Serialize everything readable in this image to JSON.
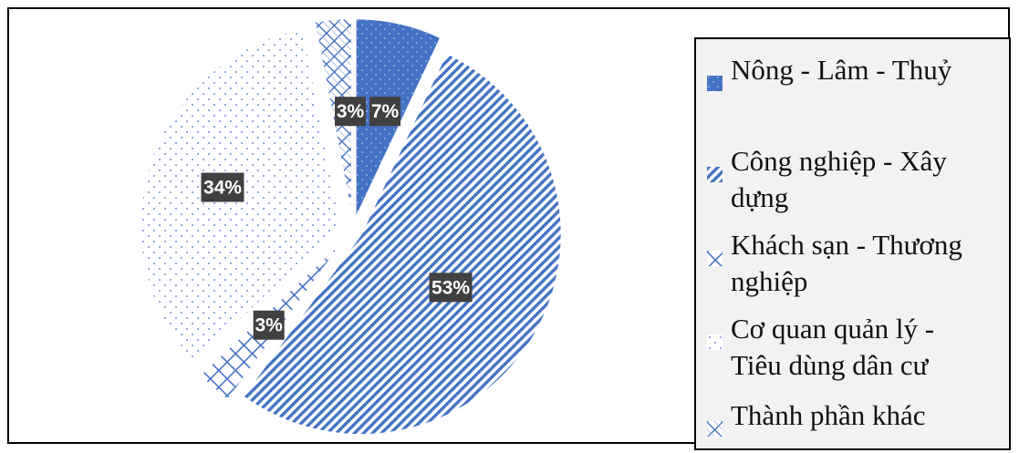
{
  "chart_data": {
    "type": "pie",
    "categories": [
      "Nông - Lâm - Thuỷ",
      "Công nghiệp - Xây dựng",
      "Khách sạn - Thương nghiệp",
      "Cơ quan quản lý - Tiêu dùng dân cư",
      "Thành phần khác"
    ],
    "values": [
      7,
      53,
      3,
      34,
      3
    ],
    "data_labels": [
      "7%",
      "53%",
      "3%",
      "34%",
      "3%"
    ],
    "legend_position": "right",
    "colors": {
      "accent": "#4472c4",
      "label_bg": "#404040",
      "legend_bg": "#f2f2f2"
    }
  },
  "legend": {
    "items": [
      {
        "label_line1": "Nông - Lâm - Thuỷ",
        "label_line2": "",
        "pattern": "solid-dotted"
      },
      {
        "label_line1": "Công nghiệp - Xây",
        "label_line2": "dựng",
        "pattern": "diagonal-stripes"
      },
      {
        "label_line1": "Khách sạn - Thương",
        "label_line2": "nghiệp",
        "pattern": "grid"
      },
      {
        "label_line1": "Cơ quan quản lý -",
        "label_line2": "Tiêu dùng dân cư",
        "pattern": "dots"
      },
      {
        "label_line1": "Thành phần khác",
        "label_line2": "",
        "pattern": "crosshatch"
      }
    ]
  }
}
